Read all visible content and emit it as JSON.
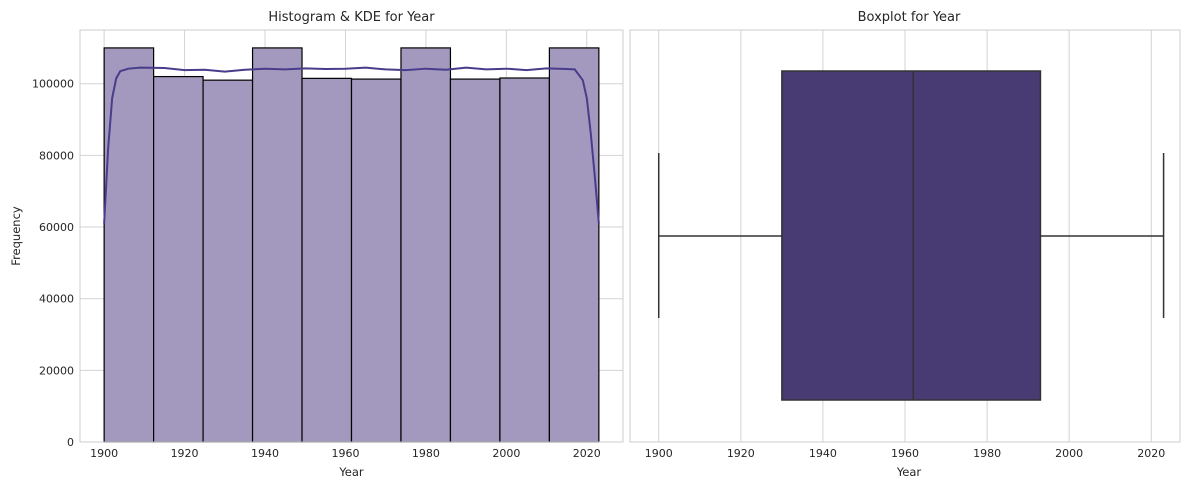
{
  "colors": {
    "bar_fill": "#a398be",
    "bar_edge": "#000000",
    "kde_line": "#483d8b",
    "box_fill": "#483a72",
    "box_edge": "#333333",
    "grid": "#d3d3d3"
  },
  "chart_data": [
    {
      "type": "bar",
      "title": "Histogram & KDE for Year",
      "xlabel": "Year",
      "ylabel": "Frequency",
      "xlim": [
        1894,
        2029
      ],
      "ylim": [
        0,
        115000
      ],
      "xticks": [
        "1900",
        "1920",
        "1940",
        "1960",
        "1980",
        "2000",
        "2020"
      ],
      "yticks": [
        "0",
        "20000",
        "40000",
        "60000",
        "80000",
        "100000"
      ],
      "bins": [
        {
          "x0": 1900,
          "x1": 1912.3,
          "value": 110000
        },
        {
          "x0": 1912.3,
          "x1": 1924.6,
          "value": 102000
        },
        {
          "x0": 1924.6,
          "x1": 1936.9,
          "value": 101000
        },
        {
          "x0": 1936.9,
          "x1": 1949.2,
          "value": 110000
        },
        {
          "x0": 1949.2,
          "x1": 1961.5,
          "value": 101500
        },
        {
          "x0": 1961.5,
          "x1": 1973.8,
          "value": 101300
        },
        {
          "x0": 1973.8,
          "x1": 1986.1,
          "value": 110000
        },
        {
          "x0": 1986.1,
          "x1": 1998.4,
          "value": 101300
        },
        {
          "x0": 1998.4,
          "x1": 2010.7,
          "value": 101600
        },
        {
          "x0": 2010.7,
          "x1": 2023,
          "value": 110000
        }
      ],
      "kde": {
        "x": [
          1900,
          1901,
          1902,
          1903,
          1904,
          1906,
          1909,
          1915,
          1920,
          1925,
          1930,
          1935,
          1940,
          1945,
          1950,
          1955,
          1960,
          1965,
          1970,
          1975,
          1980,
          1985,
          1990,
          1995,
          2000,
          2005,
          2010,
          2015,
          2017,
          2019,
          2020,
          2021,
          2022,
          2023
        ],
        "y": [
          61000,
          82000,
          96000,
          101500,
          103500,
          104200,
          104500,
          104400,
          103800,
          103900,
          103400,
          103900,
          104200,
          104000,
          104300,
          104100,
          104200,
          104500,
          104000,
          103800,
          104200,
          103900,
          104500,
          104000,
          104200,
          103800,
          104300,
          104100,
          104000,
          101000,
          96000,
          86000,
          74000,
          61000
        ]
      },
      "grid": true
    },
    {
      "type": "box",
      "title": "Boxplot for Year",
      "xlabel": "Year",
      "xlim": [
        1893,
        2027
      ],
      "xticks": [
        "1900",
        "1920",
        "1940",
        "1960",
        "1980",
        "2000",
        "2020"
      ],
      "min": 1900,
      "q1": 1930,
      "median": 1962,
      "q3": 1993,
      "max": 2023,
      "grid": true
    }
  ]
}
